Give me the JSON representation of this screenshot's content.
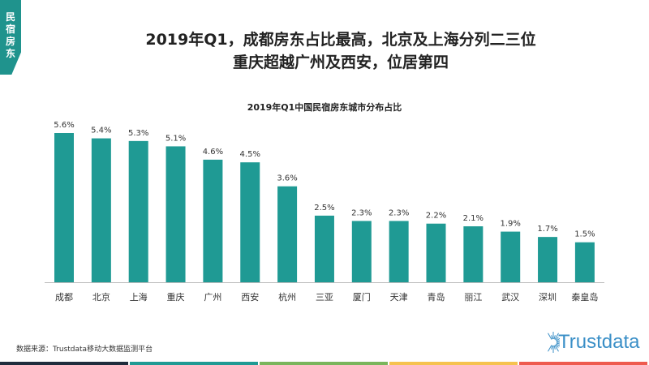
{
  "tag": "民宿房东",
  "title_line1": "2019年Q1，成都房东占比最高，北京及上海分列二三位",
  "title_line2": "重庆超越广州及西安，位居第四",
  "source": "数据来源：Trustdata移动大数据监测平台",
  "logo": "Trustdata",
  "colors": {
    "bar": "#1f9a94",
    "stripes": [
      "#1f2d3d",
      "#1f9a94",
      "#7ab55c",
      "#f6c24f",
      "#ee5b4f"
    ]
  },
  "chart_data": {
    "type": "bar",
    "title": "2019年Q1中国民宿房东城市分布占比",
    "categories": [
      "成都",
      "北京",
      "上海",
      "重庆",
      "广州",
      "西安",
      "杭州",
      "三亚",
      "厦门",
      "天津",
      "青岛",
      "丽江",
      "武汉",
      "深圳",
      "秦皇岛"
    ],
    "values": [
      5.6,
      5.4,
      5.3,
      5.1,
      4.6,
      4.5,
      3.6,
      2.5,
      2.3,
      2.3,
      2.2,
      2.1,
      1.9,
      1.7,
      1.5
    ],
    "labels": [
      "5.6%",
      "5.4%",
      "5.3%",
      "5.1%",
      "4.6%",
      "4.5%",
      "3.6%",
      "2.5%",
      "2.3%",
      "2.3%",
      "2.2%",
      "2.1%",
      "1.9%",
      "1.7%",
      "1.5%"
    ],
    "ylim": [
      0,
      5.6
    ],
    "xlabel": "",
    "ylabel": "",
    "grid": false
  }
}
